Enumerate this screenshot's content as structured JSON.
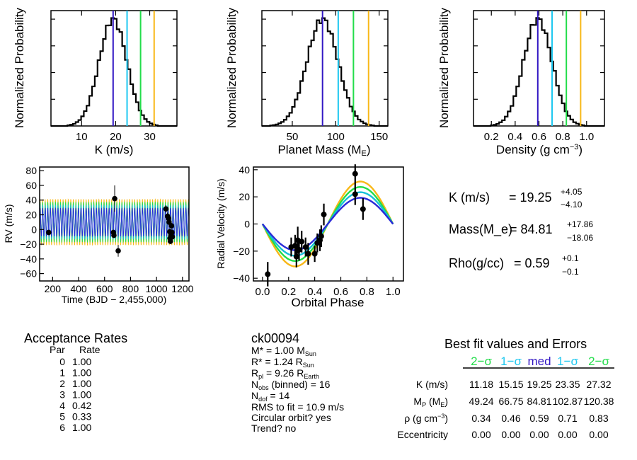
{
  "colors": {
    "median": "#3318c4",
    "sigma1": "#1ec8f0",
    "sigma2": "#22dd4a",
    "sigma3": "#f8b818",
    "curve_blue": "#2a2ad8",
    "curve_cyan": "#15c0d8",
    "curve_green": "#22dd4a",
    "curve_orange": "#f8b818"
  },
  "chart_data": [
    {
      "id": "k-hist",
      "type": "histogram",
      "title": "",
      "xlabel": "K (m/s)",
      "ylabel": "Normalized Probability",
      "xlim": [
        1,
        38
      ],
      "ylim": [
        0,
        1.08
      ],
      "xticks": [
        "10",
        "20",
        "30"
      ],
      "xtick_values": [
        10,
        20,
        30
      ],
      "peak": 19.25,
      "sigma_left": 4.1,
      "sigma_right": 4.05,
      "vlines": [
        19.25,
        23.35,
        27.32,
        31.3
      ]
    },
    {
      "id": "mass-hist",
      "type": "histogram",
      "title": "",
      "xlabel": "Planet Mass (M",
      "xlabel_sub": "E",
      "xlabel_end": ")",
      "ylabel": "Normalized Probability",
      "xlim": [
        15,
        160
      ],
      "ylim": [
        0,
        1.08
      ],
      "xticks": [
        "50",
        "100",
        "150"
      ],
      "xtick_values": [
        50,
        100,
        150
      ],
      "peak": 84.81,
      "sigma_left": 18.06,
      "sigma_right": 17.86,
      "vlines": [
        84.81,
        102.87,
        120.38,
        137.8
      ]
    },
    {
      "id": "density-hist",
      "type": "histogram",
      "title": "",
      "xlabel": "Density (g cm",
      "xlabel_sup": "−3",
      "xlabel_end": ")",
      "ylabel": "Normalized Probability",
      "xlim": [
        0.05,
        1.15
      ],
      "ylim": [
        0,
        1.08
      ],
      "xticks": [
        "0.2",
        "0.4",
        "0.6",
        "0.8",
        "1.0"
      ],
      "xtick_values": [
        0.2,
        0.4,
        0.6,
        0.8,
        1.0
      ],
      "peak": 0.59,
      "sigma_left": 0.12,
      "sigma_right": 0.12,
      "vlines": [
        0.59,
        0.71,
        0.83,
        0.95
      ]
    },
    {
      "id": "rv-time",
      "type": "scatter",
      "title": "",
      "xlabel": "Time (BJD − 2,455,000)",
      "ylabel": "RV (m/s)",
      "xlim": [
        100,
        1250
      ],
      "ylim": [
        -70,
        85
      ],
      "xticks": [
        "200",
        "400",
        "600",
        "800",
        "1000",
        "1200"
      ],
      "xtick_values": [
        200,
        400,
        600,
        800,
        1000,
        1200
      ],
      "yticks": [
        "−60",
        "−40",
        "−20",
        "0",
        "20",
        "40",
        "60",
        "80"
      ],
      "ytick_values": [
        -60,
        -40,
        -20,
        0,
        20,
        40,
        60,
        80
      ],
      "model_period": 19.7,
      "model_amplitudes": [
        31.3,
        27.3,
        23.4,
        19.3
      ],
      "model_offset": 10,
      "points": [
        {
          "x": 170,
          "y": -4,
          "err": 3
        },
        {
          "x": 668,
          "y": -4,
          "err": 3
        },
        {
          "x": 672,
          "y": -8,
          "err": 3
        },
        {
          "x": 678,
          "y": 42,
          "err": 18
        },
        {
          "x": 705,
          "y": -29,
          "err": 8
        },
        {
          "x": 1073,
          "y": 28,
          "err": 5
        },
        {
          "x": 1085,
          "y": 18,
          "err": 5
        },
        {
          "x": 1093,
          "y": 15,
          "err": 4
        },
        {
          "x": 1097,
          "y": 10,
          "err": 4
        },
        {
          "x": 1102,
          "y": -3,
          "err": 4
        },
        {
          "x": 1104,
          "y": -12,
          "err": 4
        },
        {
          "x": 1107,
          "y": -16,
          "err": 4
        },
        {
          "x": 1110,
          "y": -8,
          "err": 4
        },
        {
          "x": 1115,
          "y": 5,
          "err": 4
        },
        {
          "x": 1119,
          "y": -4,
          "err": 4
        },
        {
          "x": 1122,
          "y": -10,
          "err": 4
        }
      ]
    },
    {
      "id": "phase",
      "type": "scatter",
      "title": "",
      "xlabel": "Orbital Phase",
      "ylabel": "Radial Velocity (m/s)",
      "xlim": [
        -0.07,
        1.08
      ],
      "ylim": [
        -42,
        42
      ],
      "xticks": [
        "0.0",
        "0.2",
        "0.4",
        "0.6",
        "0.8",
        "1.0"
      ],
      "xtick_values": [
        0.0,
        0.2,
        0.4,
        0.6,
        0.8,
        1.0
      ],
      "yticks": [
        "−40",
        "−20",
        "0",
        "20",
        "40"
      ],
      "ytick_values": [
        -40,
        -20,
        0,
        20,
        40
      ],
      "model_amplitudes": [
        31.3,
        27.3,
        23.4,
        19.3
      ],
      "model_peak_phase": 0.75,
      "points": [
        {
          "x": 0.04,
          "y": -37,
          "err": 9
        },
        {
          "x": 0.22,
          "y": -17,
          "err": 7
        },
        {
          "x": 0.25,
          "y": -16,
          "err": 8
        },
        {
          "x": 0.26,
          "y": -24,
          "err": 8
        },
        {
          "x": 0.27,
          "y": -12,
          "err": 10
        },
        {
          "x": 0.28,
          "y": -19,
          "err": 8
        },
        {
          "x": 0.3,
          "y": -13,
          "err": 8
        },
        {
          "x": 0.33,
          "y": -17,
          "err": 7
        },
        {
          "x": 0.35,
          "y": -22,
          "err": 8
        },
        {
          "x": 0.4,
          "y": -22,
          "err": 6
        },
        {
          "x": 0.42,
          "y": -14,
          "err": 7
        },
        {
          "x": 0.44,
          "y": -12,
          "err": 8
        },
        {
          "x": 0.45,
          "y": -9,
          "err": 8
        },
        {
          "x": 0.47,
          "y": 7,
          "err": 8
        },
        {
          "x": 0.71,
          "y": 37,
          "err": 7
        },
        {
          "x": 0.71,
          "y": 22,
          "err": 8
        },
        {
          "x": 0.77,
          "y": 11,
          "err": 8
        }
      ]
    }
  ],
  "summary": {
    "k": {
      "label": "K (m/s)",
      "eq": "= 19.25",
      "plus": "+4.05",
      "minus": "−4.10"
    },
    "mass": {
      "label": "Mass(M_e)",
      "eq": "= 84.81",
      "plus": "+17.86",
      "minus": "−18.06"
    },
    "rho": {
      "label": "Rho(g/cc)",
      "eq": "= 0.59",
      "plus": "+0.1",
      "minus": "−0.1"
    }
  },
  "acceptance": {
    "title": "Acceptance Rates",
    "col_par": "Par",
    "col_rate": "Rate",
    "rows": [
      {
        "par": "0",
        "rate": "1.00"
      },
      {
        "par": "1",
        "rate": "1.00"
      },
      {
        "par": "2",
        "rate": "1.00"
      },
      {
        "par": "3",
        "rate": "1.00"
      },
      {
        "par": "4",
        "rate": "0.42"
      },
      {
        "par": "5",
        "rate": "0.33"
      },
      {
        "par": "6",
        "rate": "1.00"
      }
    ]
  },
  "star": {
    "name": "ck00094",
    "mstar_a": "M",
    "mstar_b": "* = 1.00 M",
    "mstar_sub": "Sun",
    "rstar_a": "R",
    "rstar_b": "* = 1.24 R",
    "rstar_sub": "Sun",
    "rpl_a": "R",
    "rpl_sub": "pl",
    "rpl_b": " = 9.26 R",
    "rpl_sub2": "Earth",
    "nobs_a": "N",
    "nobs_sub": "obs",
    "nobs_b": " (binned) = 16",
    "ndof_a": "N",
    "ndof_sub": "dof",
    "ndof_b": " = 14",
    "rms": "RMS to fit = 10.9 m/s",
    "circular": "Circular orbit? yes",
    "trend": "Trend? no"
  },
  "bestfit": {
    "title": "Best fit values and Errors",
    "headers": [
      "2−σ",
      "1−σ",
      "med",
      "1−σ",
      "2−σ"
    ],
    "rows": [
      {
        "label": "K (m/s)",
        "values": [
          "11.18",
          "15.15",
          "19.25",
          "23.35",
          "27.32"
        ]
      },
      {
        "label_a": "M",
        "label_sub": "P",
        "label_b": " (M",
        "label_sub2": "E",
        "label_c": ")",
        "values": [
          "49.24",
          "66.75",
          "84.81",
          "102.87",
          "120.38"
        ]
      },
      {
        "label_a": "ρ (g cm",
        "label_sup": "−3",
        "label_c": ")",
        "values": [
          "0.34",
          "0.46",
          "0.59",
          "0.71",
          "0.83"
        ]
      },
      {
        "label": "Eccentricity",
        "values": [
          "0.00",
          "0.00",
          "0.00",
          "0.00",
          "0.00"
        ]
      }
    ]
  }
}
